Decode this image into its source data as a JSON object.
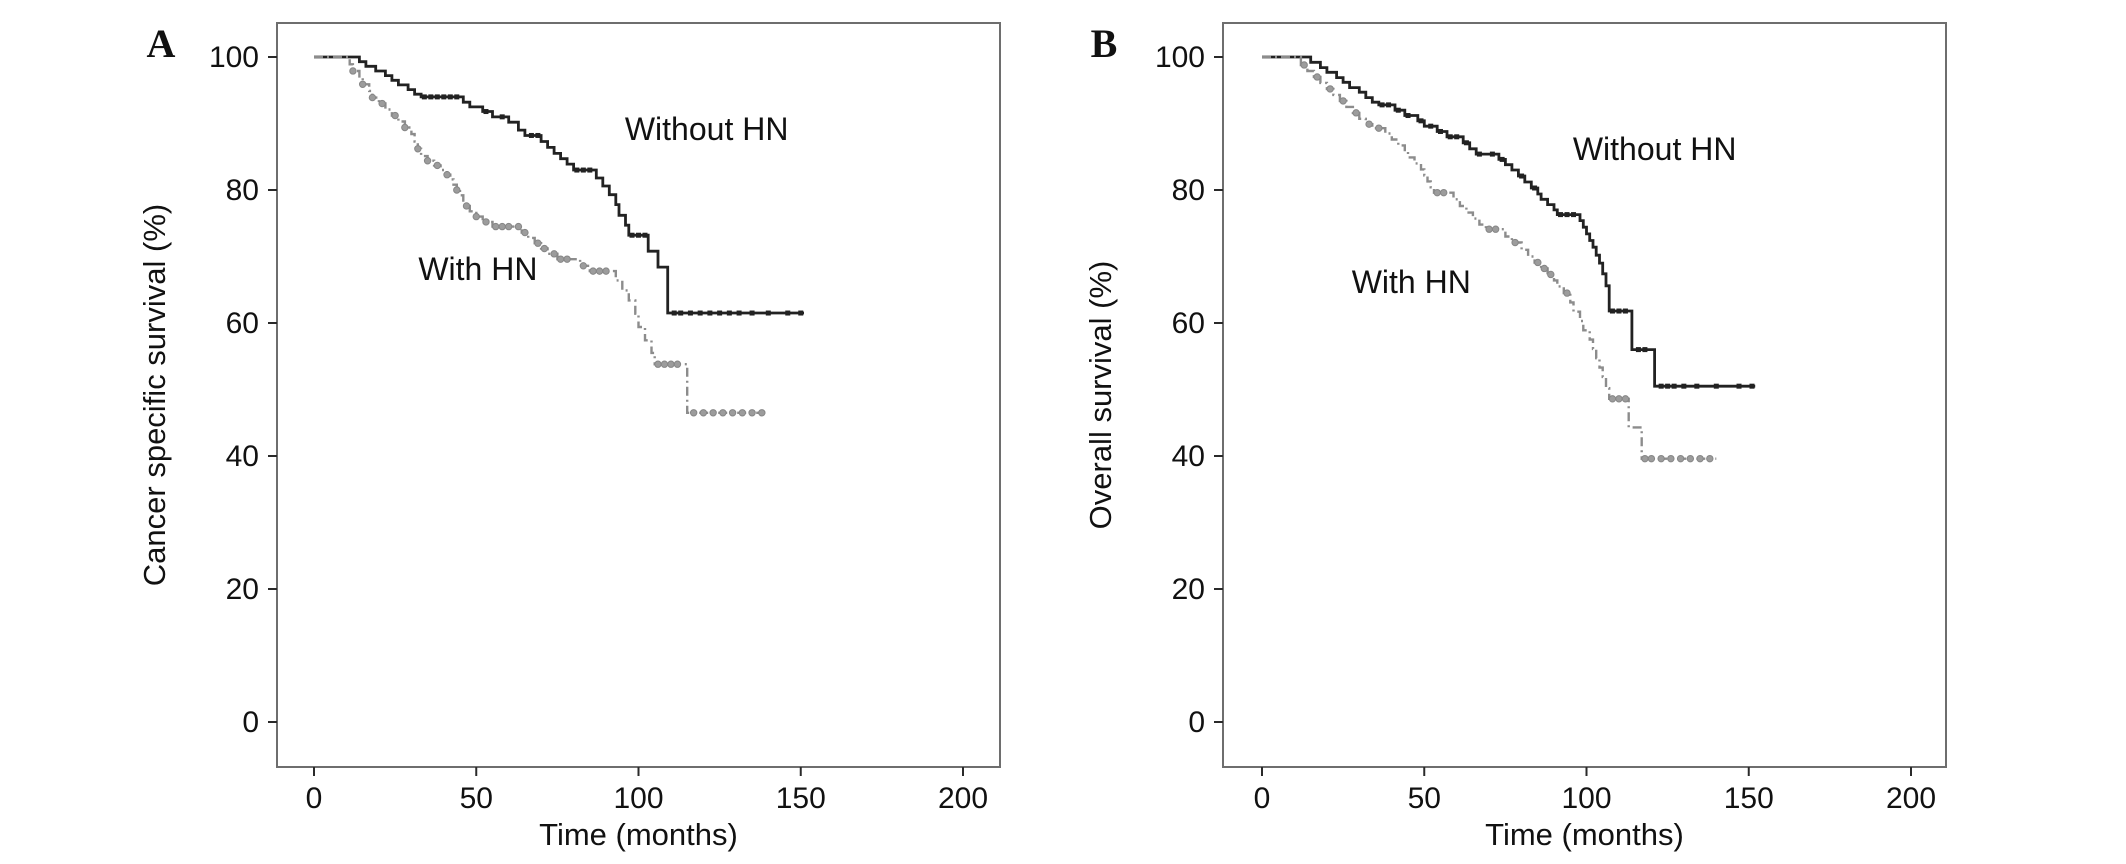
{
  "figure": {
    "background": "#ffffff",
    "box_color": "#6e6e6e",
    "tick_color": "#2a2a2a",
    "text_color": "#111111"
  },
  "chart_data": {
    "type": "line",
    "subtype": "kaplan-meier-step",
    "panels": [
      {
        "letter": "A",
        "x_title": "Time (months)",
        "y_title": "Cancer specific survival (%)",
        "x_ticks": [
          0,
          50,
          100,
          150,
          200
        ],
        "y_ticks": [
          0,
          20,
          40,
          60,
          80,
          100
        ],
        "x_range": [
          0,
          211
        ],
        "y_range": [
          -7,
          105
        ],
        "grid": false,
        "annotations": [
          {
            "text": "Without HN",
            "t": 121,
            "pct": 89
          },
          {
            "text": "With HN",
            "t": 50.5,
            "pct": 68
          }
        ],
        "series": [
          {
            "name": "Without HN",
            "style": "solid",
            "color": "#222222",
            "censor_color": "#222222",
            "points": [
              [
                0,
                100
              ],
              [
                14,
                99.3
              ],
              [
                16,
                98.6
              ],
              [
                19,
                97.9
              ],
              [
                22,
                97.2
              ],
              [
                24,
                96.5
              ],
              [
                26,
                95.8
              ],
              [
                29,
                95.1
              ],
              [
                31,
                94.4
              ],
              [
                33,
                94
              ],
              [
                46,
                93.2
              ],
              [
                48,
                92.5
              ],
              [
                52,
                91.8
              ],
              [
                55,
                91
              ],
              [
                60,
                90.2
              ],
              [
                63,
                89
              ],
              [
                65,
                88.2
              ],
              [
                70,
                87.3
              ],
              [
                72,
                86.4
              ],
              [
                74,
                85.5
              ],
              [
                76,
                84.7
              ],
              [
                78,
                83.9
              ],
              [
                80,
                83
              ],
              [
                87,
                81.8
              ],
              [
                89,
                80.6
              ],
              [
                91,
                79.3
              ],
              [
                93,
                77.8
              ],
              [
                94,
                76.2
              ],
              [
                96,
                74.7
              ],
              [
                97,
                73.2
              ],
              [
                103,
                70.8
              ],
              [
                106,
                68.4
              ],
              [
                109,
                61.5
              ],
              [
                151,
                61.5
              ]
            ],
            "censor_times": [
              34,
              36,
              38,
              40,
              42,
              44,
              53,
              58,
              67,
              69,
              81,
              83,
              85,
              98,
              100,
              102,
              111,
              113,
              116,
              119,
              122,
              125,
              128,
              131,
              135,
              140,
              146,
              150
            ]
          },
          {
            "name": "With HN",
            "style": "dashdot",
            "color": "#8c8c8c",
            "censor_color": "#9c9c9c",
            "points": [
              [
                0,
                100
              ],
              [
                11,
                98.9
              ],
              [
                12,
                97.9
              ],
              [
                14,
                96.9
              ],
              [
                15,
                95.9
              ],
              [
                17,
                94.9
              ],
              [
                18,
                93.9
              ],
              [
                20,
                93
              ],
              [
                22,
                92.1
              ],
              [
                24,
                91.2
              ],
              [
                26,
                90.3
              ],
              [
                28,
                89.4
              ],
              [
                30,
                88.4
              ],
              [
                31,
                87.3
              ],
              [
                32,
                86.2
              ],
              [
                33,
                85.1
              ],
              [
                35,
                84.4
              ],
              [
                37,
                83.7
              ],
              [
                39,
                83
              ],
              [
                41,
                82.3
              ],
              [
                42,
                81.6
              ],
              [
                43,
                80.8
              ],
              [
                44,
                80
              ],
              [
                45,
                79.2
              ],
              [
                46,
                78.4
              ],
              [
                47,
                77.6
              ],
              [
                48,
                76.8
              ],
              [
                50,
                76
              ],
              [
                52,
                75.2
              ],
              [
                55,
                74.5
              ],
              [
                62,
                74.5
              ],
              [
                64,
                73.6
              ],
              [
                66,
                72.8
              ],
              [
                68,
                72
              ],
              [
                70,
                71.2
              ],
              [
                72,
                70.4
              ],
              [
                75,
                69.6
              ],
              [
                81,
                69.6
              ],
              [
                82,
                68.6
              ],
              [
                85,
                67.8
              ],
              [
                92,
                67.8
              ],
              [
                93,
                66.4
              ],
              [
                95,
                64.9
              ],
              [
                97,
                63.4
              ],
              [
                99,
                61.4
              ],
              [
                100,
                59.4
              ],
              [
                102,
                57.4
              ],
              [
                104,
                55.5
              ],
              [
                105,
                53.8
              ],
              [
                113,
                53.8
              ],
              [
                115,
                46.5
              ],
              [
                140,
                46.5
              ]
            ],
            "censor_times": [
              12,
              15,
              18,
              21,
              25,
              28,
              32,
              35,
              38,
              41,
              44,
              47,
              50,
              53,
              56,
              58,
              60,
              63,
              65,
              69,
              71,
              74,
              76,
              78,
              83,
              86,
              88,
              90,
              106,
              108,
              110,
              112,
              117,
              120,
              123,
              126,
              129,
              132,
              135,
              138
            ]
          }
        ]
      },
      {
        "letter": "B",
        "x_title": "Time (months)",
        "y_title": "Overall survival (%)",
        "x_ticks": [
          0,
          50,
          100,
          150,
          200
        ],
        "y_ticks": [
          0,
          20,
          40,
          60,
          80,
          100
        ],
        "x_range": [
          0,
          211
        ],
        "y_range": [
          -7,
          105
        ],
        "grid": false,
        "annotations": [
          {
            "text": "Without HN",
            "t": 121,
            "pct": 86
          },
          {
            "text": "With HN",
            "t": 46,
            "pct": 66
          }
        ],
        "series": [
          {
            "name": "Without HN",
            "style": "solid",
            "color": "#222222",
            "censor_color": "#222222",
            "points": [
              [
                0,
                100
              ],
              [
                15,
                99.2
              ],
              [
                18,
                98.4
              ],
              [
                20,
                97.7
              ],
              [
                23,
                96.9
              ],
              [
                25,
                96.2
              ],
              [
                27,
                95.4
              ],
              [
                30,
                94.7
              ],
              [
                32,
                93.9
              ],
              [
                34,
                93.2
              ],
              [
                36,
                92.8
              ],
              [
                41,
                92
              ],
              [
                44,
                91.2
              ],
              [
                48,
                90.4
              ],
              [
                50,
                89.6
              ],
              [
                54,
                88.8
              ],
              [
                57,
                88
              ],
              [
                62,
                87.1
              ],
              [
                64,
                86.2
              ],
              [
                66,
                85.4
              ],
              [
                73,
                84.6
              ],
              [
                75,
                83.8
              ],
              [
                77,
                83
              ],
              [
                79,
                82.1
              ],
              [
                81,
                81.2
              ],
              [
                83,
                80.3
              ],
              [
                85,
                79.4
              ],
              [
                86,
                78.6
              ],
              [
                88,
                77.8
              ],
              [
                90,
                77
              ],
              [
                91,
                76.3
              ],
              [
                98,
                75.4
              ],
              [
                99,
                74.4
              ],
              [
                100,
                73.4
              ],
              [
                101,
                72.4
              ],
              [
                102,
                71.4
              ],
              [
                103,
                70.2
              ],
              [
                104,
                69
              ],
              [
                105,
                67.4
              ],
              [
                106,
                65.6
              ],
              [
                107,
                61.8
              ],
              [
                114,
                56
              ],
              [
                121,
                50.5
              ],
              [
                152,
                50.5
              ]
            ],
            "censor_times": [
              37,
              39,
              42,
              45,
              49,
              52,
              55,
              58,
              60,
              63,
              67,
              71,
              74,
              80,
              84,
              92,
              94,
              96,
              108,
              110,
              112,
              116,
              118,
              123,
              125,
              127,
              130,
              134,
              140,
              147,
              151
            ]
          },
          {
            "name": "With HN",
            "style": "dashdot",
            "color": "#8c8c8c",
            "censor_color": "#9c9c9c",
            "points": [
              [
                0,
                100
              ],
              [
                12,
                98.8
              ],
              [
                14,
                97.9
              ],
              [
                16,
                97
              ],
              [
                18,
                96.1
              ],
              [
                20,
                95.2
              ],
              [
                22,
                94.3
              ],
              [
                24,
                93.4
              ],
              [
                26,
                92.5
              ],
              [
                28,
                91.6
              ],
              [
                30,
                90.7
              ],
              [
                32,
                89.9
              ],
              [
                34,
                89.3
              ],
              [
                38,
                88.5
              ],
              [
                40,
                87.6
              ],
              [
                42,
                86.7
              ],
              [
                44,
                85.8
              ],
              [
                45,
                84.9
              ],
              [
                47,
                84
              ],
              [
                49,
                83.1
              ],
              [
                50,
                82.2
              ],
              [
                51,
                81.3
              ],
              [
                52,
                80.4
              ],
              [
                53,
                79.6
              ],
              [
                58,
                79.6
              ],
              [
                59,
                78.6
              ],
              [
                61,
                77.6
              ],
              [
                63,
                76.6
              ],
              [
                65,
                75.7
              ],
              [
                67,
                74.8
              ],
              [
                69,
                74.1
              ],
              [
                74,
                74.1
              ],
              [
                75,
                73
              ],
              [
                77,
                72.1
              ],
              [
                80,
                71
              ],
              [
                82,
                70
              ],
              [
                84,
                69.1
              ],
              [
                86,
                68.2
              ],
              [
                88,
                67.3
              ],
              [
                90,
                66.4
              ],
              [
                91,
                65.5
              ],
              [
                93,
                64.5
              ],
              [
                95,
                63.1
              ],
              [
                96,
                61.7
              ],
              [
                98,
                60.3
              ],
              [
                99,
                58.9
              ],
              [
                101,
                57.5
              ],
              [
                102,
                56.1
              ],
              [
                103,
                54.7
              ],
              [
                104,
                53.3
              ],
              [
                105,
                51.9
              ],
              [
                106,
                50.2
              ],
              [
                107,
                48.6
              ],
              [
                113,
                44.3
              ],
              [
                117,
                39.6
              ],
              [
                140,
                39.6
              ]
            ],
            "censor_times": [
              13,
              17,
              21,
              25,
              29,
              33,
              36,
              54,
              56,
              70,
              72,
              78,
              85,
              87,
              89,
              94,
              108,
              110,
              112,
              118,
              120,
              123,
              126,
              129,
              132,
              135,
              138
            ]
          }
        ]
      }
    ]
  }
}
